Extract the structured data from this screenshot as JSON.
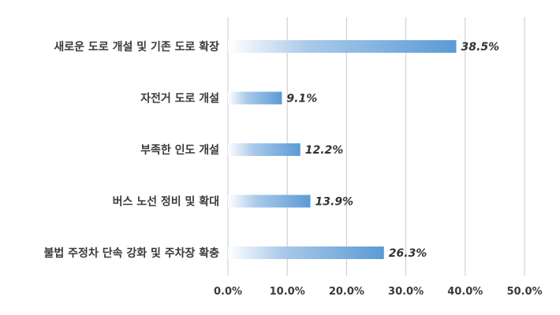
{
  "chart_data": {
    "type": "bar",
    "orientation": "horizontal",
    "categories": [
      "새로운 도로 개설 및 기존 도로 확장",
      "자전거 도로 개설",
      "부족한 인도 개설",
      "버스 노선 정비 및 확대",
      "불법 주정차 단속 강화 및 주차장 확충"
    ],
    "values": [
      38.5,
      9.1,
      12.2,
      13.9,
      26.3
    ],
    "value_labels": [
      "38.5%",
      "9.1%",
      "12.2%",
      "13.9%",
      "26.3%"
    ],
    "xlim": [
      0,
      50
    ],
    "x_ticks": [
      "0.0%",
      "10.0%",
      "20.0%",
      "30.0%",
      "40.0%",
      "50.0%"
    ],
    "grid": "vertical",
    "bar_color_start": "#ffffff",
    "bar_color_end": "#5b9bd5",
    "title": "",
    "xlabel": "",
    "ylabel": ""
  }
}
